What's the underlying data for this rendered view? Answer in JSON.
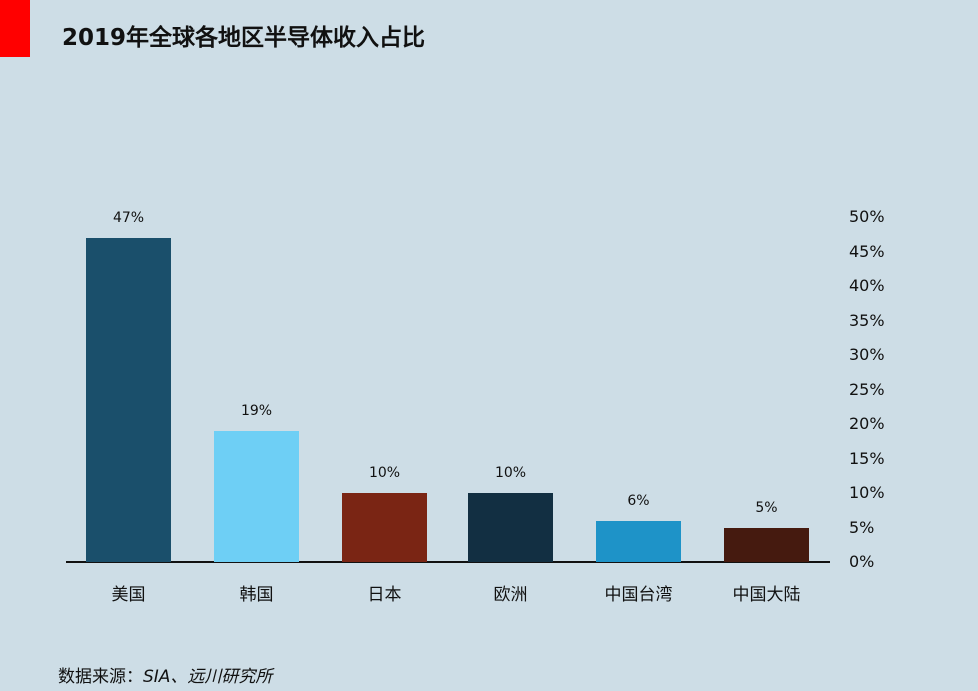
{
  "header": {
    "title": "2019年全球各地区半导体收入占比",
    "accent_color": "#ff0000"
  },
  "footer": {
    "source_prefix": "数据来源：",
    "source_value": "SIA、远川研究所"
  },
  "chart_data": {
    "type": "bar",
    "title": "2019年全球各地区半导体收入占比",
    "xlabel": "",
    "ylabel": "",
    "categories": [
      "美国",
      "韩国",
      "日本",
      "欧洲",
      "中国台湾",
      "中国大陆"
    ],
    "values": [
      47,
      19,
      10,
      10,
      6,
      5
    ],
    "value_labels": [
      "47%",
      "19%",
      "10%",
      "10%",
      "6%",
      "5%"
    ],
    "colors": [
      "#1a4f6b",
      "#6ecff5",
      "#7a2514",
      "#122f42",
      "#1e93c8",
      "#451a0f"
    ],
    "ylim": [
      0,
      50
    ],
    "y_axis_position": "right",
    "yticks": [
      "0%",
      "5%",
      "10%",
      "15%",
      "20%",
      "25%",
      "30%",
      "35%",
      "40%",
      "45%",
      "50%"
    ],
    "grid": false,
    "legend": null
  }
}
